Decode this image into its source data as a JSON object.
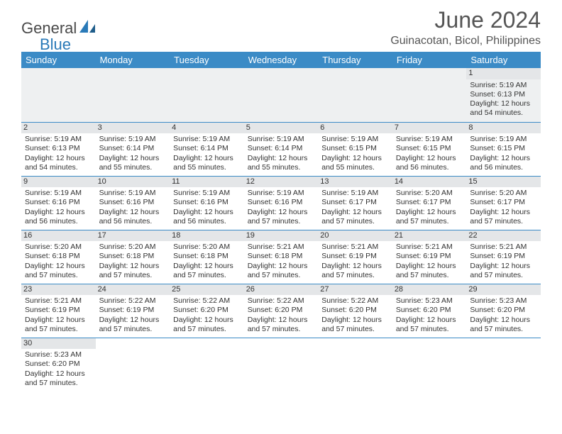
{
  "logo": {
    "part1": "General",
    "part2": "Blue"
  },
  "title": "June 2024",
  "location": "Guinacotan, Bicol, Philippines",
  "header_bg": "#3b8bc6",
  "days_of_week": [
    "Sunday",
    "Monday",
    "Tuesday",
    "Wednesday",
    "Thursday",
    "Friday",
    "Saturday"
  ],
  "cells": [
    [
      null,
      null,
      null,
      null,
      null,
      null,
      {
        "n": "1",
        "sr": "5:19 AM",
        "ss": "6:13 PM",
        "dl": "12 hours and 54 minutes."
      }
    ],
    [
      {
        "n": "2",
        "sr": "5:19 AM",
        "ss": "6:13 PM",
        "dl": "12 hours and 54 minutes."
      },
      {
        "n": "3",
        "sr": "5:19 AM",
        "ss": "6:14 PM",
        "dl": "12 hours and 55 minutes."
      },
      {
        "n": "4",
        "sr": "5:19 AM",
        "ss": "6:14 PM",
        "dl": "12 hours and 55 minutes."
      },
      {
        "n": "5",
        "sr": "5:19 AM",
        "ss": "6:14 PM",
        "dl": "12 hours and 55 minutes."
      },
      {
        "n": "6",
        "sr": "5:19 AM",
        "ss": "6:15 PM",
        "dl": "12 hours and 55 minutes."
      },
      {
        "n": "7",
        "sr": "5:19 AM",
        "ss": "6:15 PM",
        "dl": "12 hours and 56 minutes."
      },
      {
        "n": "8",
        "sr": "5:19 AM",
        "ss": "6:15 PM",
        "dl": "12 hours and 56 minutes."
      }
    ],
    [
      {
        "n": "9",
        "sr": "5:19 AM",
        "ss": "6:16 PM",
        "dl": "12 hours and 56 minutes."
      },
      {
        "n": "10",
        "sr": "5:19 AM",
        "ss": "6:16 PM",
        "dl": "12 hours and 56 minutes."
      },
      {
        "n": "11",
        "sr": "5:19 AM",
        "ss": "6:16 PM",
        "dl": "12 hours and 56 minutes."
      },
      {
        "n": "12",
        "sr": "5:19 AM",
        "ss": "6:16 PM",
        "dl": "12 hours and 57 minutes."
      },
      {
        "n": "13",
        "sr": "5:19 AM",
        "ss": "6:17 PM",
        "dl": "12 hours and 57 minutes."
      },
      {
        "n": "14",
        "sr": "5:20 AM",
        "ss": "6:17 PM",
        "dl": "12 hours and 57 minutes."
      },
      {
        "n": "15",
        "sr": "5:20 AM",
        "ss": "6:17 PM",
        "dl": "12 hours and 57 minutes."
      }
    ],
    [
      {
        "n": "16",
        "sr": "5:20 AM",
        "ss": "6:18 PM",
        "dl": "12 hours and 57 minutes."
      },
      {
        "n": "17",
        "sr": "5:20 AM",
        "ss": "6:18 PM",
        "dl": "12 hours and 57 minutes."
      },
      {
        "n": "18",
        "sr": "5:20 AM",
        "ss": "6:18 PM",
        "dl": "12 hours and 57 minutes."
      },
      {
        "n": "19",
        "sr": "5:21 AM",
        "ss": "6:18 PM",
        "dl": "12 hours and 57 minutes."
      },
      {
        "n": "20",
        "sr": "5:21 AM",
        "ss": "6:19 PM",
        "dl": "12 hours and 57 minutes."
      },
      {
        "n": "21",
        "sr": "5:21 AM",
        "ss": "6:19 PM",
        "dl": "12 hours and 57 minutes."
      },
      {
        "n": "22",
        "sr": "5:21 AM",
        "ss": "6:19 PM",
        "dl": "12 hours and 57 minutes."
      }
    ],
    [
      {
        "n": "23",
        "sr": "5:21 AM",
        "ss": "6:19 PM",
        "dl": "12 hours and 57 minutes."
      },
      {
        "n": "24",
        "sr": "5:22 AM",
        "ss": "6:19 PM",
        "dl": "12 hours and 57 minutes."
      },
      {
        "n": "25",
        "sr": "5:22 AM",
        "ss": "6:20 PM",
        "dl": "12 hours and 57 minutes."
      },
      {
        "n": "26",
        "sr": "5:22 AM",
        "ss": "6:20 PM",
        "dl": "12 hours and 57 minutes."
      },
      {
        "n": "27",
        "sr": "5:22 AM",
        "ss": "6:20 PM",
        "dl": "12 hours and 57 minutes."
      },
      {
        "n": "28",
        "sr": "5:23 AM",
        "ss": "6:20 PM",
        "dl": "12 hours and 57 minutes."
      },
      {
        "n": "29",
        "sr": "5:23 AM",
        "ss": "6:20 PM",
        "dl": "12 hours and 57 minutes."
      }
    ],
    [
      {
        "n": "30",
        "sr": "5:23 AM",
        "ss": "6:20 PM",
        "dl": "12 hours and 57 minutes."
      },
      null,
      null,
      null,
      null,
      null,
      null
    ]
  ],
  "labels": {
    "sunrise": "Sunrise:",
    "sunset": "Sunset:",
    "daylight": "Daylight:"
  },
  "colors": {
    "header_bg": "#3b8bc6",
    "header_text": "#ffffff",
    "daynum_bg": "#e4e6e8",
    "border": "#3b8bc6",
    "title_color": "#555555",
    "text_color": "#333333",
    "logo_gray": "#4a4a4a",
    "logo_blue": "#2a7ab8"
  },
  "typography": {
    "title_fontsize": 32,
    "location_fontsize": 16,
    "header_fontsize": 13,
    "cell_fontsize": 10.5,
    "logo_fontsize": 22
  }
}
